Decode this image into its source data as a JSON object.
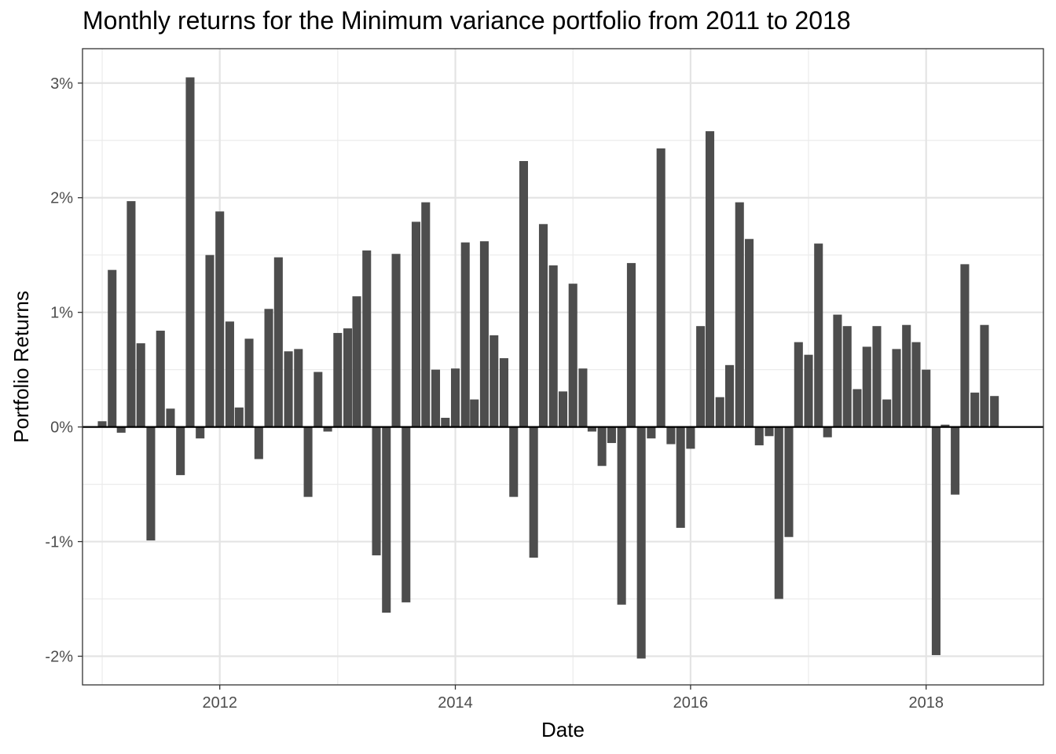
{
  "chart_data": {
    "type": "bar",
    "title": "Monthly returns for the Minimum variance portfolio from 2011 to 2018",
    "xlabel": "Date",
    "ylabel": "Portfolio Returns",
    "x_ticks": [
      "2012",
      "2014",
      "2016",
      "2018"
    ],
    "y_ticks": [
      "-2%",
      "-1%",
      "0%",
      "1%",
      "2%",
      "3%"
    ],
    "ylim": [
      -0.0225,
      0.033
    ],
    "xlim": [
      "2010-11-01",
      "2018-12-31"
    ],
    "grid": true,
    "bar_color": "#4d4d4d",
    "series": [
      {
        "values": [
          0.0005,
          0.0137,
          -0.0005,
          0.0197,
          0.0073,
          -0.0099,
          0.0084,
          0.0016,
          -0.0042,
          0.0305,
          -0.001,
          0.015,
          0.0188,
          0.0092,
          0.0017,
          0.0077,
          -0.0028,
          0.0103,
          0.0148,
          0.0066,
          0.0068,
          -0.0061,
          0.0048,
          -0.0004,
          0.0082,
          0.0086,
          0.0114,
          0.0154,
          -0.0112,
          -0.0162,
          0.0151,
          -0.0153,
          0.0179,
          0.0196,
          0.005,
          0.0008,
          0.0051,
          0.0161,
          0.0024,
          0.0162,
          0.008,
          0.006,
          -0.0061,
          0.0232,
          -0.0114,
          0.0177,
          0.0141,
          0.0031,
          0.0125,
          0.0051,
          -0.0004,
          -0.0034,
          -0.0014,
          -0.0155,
          0.0143,
          -0.0202,
          -0.001,
          0.0243,
          -0.0015,
          -0.0088,
          -0.0019,
          0.0088,
          0.0258,
          0.0026,
          0.0054,
          0.0196,
          0.0164,
          -0.0016,
          -0.0008,
          -0.015,
          -0.0096,
          0.0074,
          0.0063,
          0.016,
          -0.0009,
          0.0098,
          0.0088,
          0.0033,
          0.007,
          0.0088,
          0.0024,
          0.0068,
          0.0089,
          0.0074,
          0.005,
          -0.0199,
          0.0002,
          -0.0059,
          0.0142,
          0.003,
          0.0089,
          0.0027
        ]
      }
    ],
    "x_start": "2011-01"
  }
}
